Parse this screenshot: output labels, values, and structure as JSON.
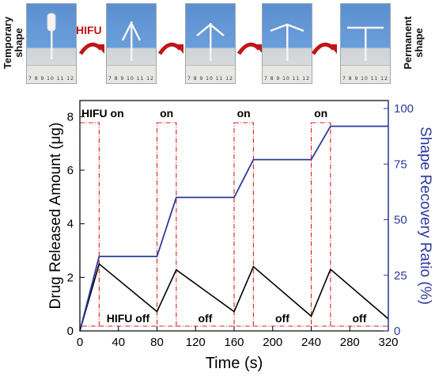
{
  "top_panel": {
    "left_label": "Temporary\nshape",
    "right_label": "Permanent\nshape",
    "arrow_label": "HIFU",
    "ruler_text": "7 8 9 10 11 12 1",
    "arrow_color": "#c0161b"
  },
  "chart_data": {
    "type": "line",
    "xlabel": "Time (s)",
    "ylabel": "Drug Released Amount (μg)",
    "ylabel_right": "Shape Recovery Ratio (%)",
    "x_ticks": [
      0,
      40,
      80,
      120,
      160,
      200,
      240,
      280,
      320
    ],
    "y_ticks": [
      0,
      2,
      4,
      6,
      8
    ],
    "y2_ticks": [
      0,
      25,
      50,
      75,
      100
    ],
    "xlim": [
      0,
      320
    ],
    "ylim": [
      0,
      8.6
    ],
    "y2lim": [
      0,
      100
    ],
    "series": [
      {
        "axis": "left",
        "color": "#000000",
        "x": [
          0,
          20,
          80,
          100,
          160,
          180,
          240,
          260,
          320
        ],
        "y": [
          0,
          2.5,
          0.72,
          2.28,
          0.72,
          2.4,
          0.55,
          2.3,
          0.45
        ]
      },
      {
        "axis": "right",
        "color": "#2e3a9c",
        "x": [
          0,
          20,
          80,
          100,
          160,
          180,
          240,
          260,
          320
        ],
        "y": [
          0,
          33.5,
          33.5,
          60,
          60,
          77,
          77,
          92,
          92
        ]
      }
    ],
    "hifu_on_intervals": [
      [
        0,
        20
      ],
      [
        80,
        100
      ],
      [
        160,
        180
      ],
      [
        240,
        260
      ]
    ],
    "annotations": {
      "on": [
        "HIFU on",
        "on",
        "on",
        "on"
      ],
      "off": [
        "HIFU off",
        "off",
        "off",
        "off"
      ]
    },
    "colors": {
      "left_axis": "#000000",
      "right_axis": "#2e3a9c",
      "interval_box": "#d42020"
    },
    "grid": false
  }
}
